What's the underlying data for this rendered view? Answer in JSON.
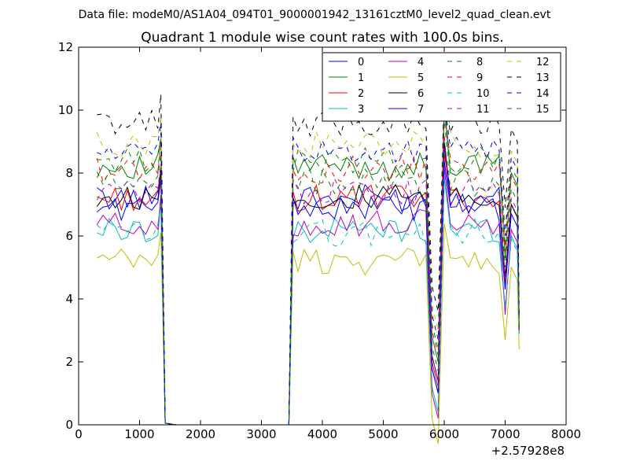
{
  "chart_data": {
    "type": "line",
    "suptitle": "Data file: modeM0/AS1A04_094T01_9000001942_13161cztM0_level2_quad_clean.evt",
    "title": "Quadrant 1 module wise count rates with 100.0s bins.",
    "xlabel": "",
    "ylabel": "",
    "xlim": [
      0,
      8000
    ],
    "ylim": [
      0,
      12
    ],
    "xticks": [
      0,
      1000,
      2000,
      3000,
      4000,
      5000,
      6000,
      7000,
      8000
    ],
    "yticks": [
      0,
      2,
      4,
      6,
      8,
      10,
      12
    ],
    "x_offset_label": "+2.57928e8",
    "grid": false,
    "legend": {
      "placement": "top-right",
      "columns": 4
    },
    "x": [
      300,
      400,
      500,
      600,
      700,
      800,
      900,
      1000,
      1100,
      1200,
      1300,
      1350,
      1420,
      1600,
      2000,
      2500,
      3000,
      3400,
      3450,
      3520,
      3600,
      3700,
      3800,
      3900,
      4000,
      4100,
      4200,
      4300,
      4400,
      4500,
      4600,
      4700,
      4800,
      4900,
      5000,
      5100,
      5200,
      5300,
      5400,
      5500,
      5600,
      5700,
      5800,
      5900,
      6000,
      6100,
      6200,
      6300,
      6400,
      6500,
      6600,
      6700,
      6800,
      6900,
      7000,
      7100,
      7200,
      7230
    ],
    "series": [
      {
        "name": "0",
        "color": "#0000ff",
        "dash": "solid",
        "base": 7.2,
        "low": 5.8,
        "spike": 8.9,
        "end": 3.0
      },
      {
        "name": "1",
        "color": "#008000",
        "dash": "solid",
        "base": 8.2,
        "low": 6.8,
        "spike": 10.1,
        "end": 3.2
      },
      {
        "name": "2",
        "color": "#ff0000",
        "dash": "solid",
        "base": 7.2,
        "low": 6.0,
        "spike": 8.6,
        "end": 3.0
      },
      {
        "name": "3",
        "color": "#00bfbf",
        "dash": "solid",
        "base": 6.2,
        "low": 5.2,
        "spike": 7.9,
        "end": 2.9
      },
      {
        "name": "4",
        "color": "#bf00bf",
        "dash": "solid",
        "base": 6.4,
        "low": 5.0,
        "spike": 8.2,
        "end": 3.0
      },
      {
        "name": "5",
        "color": "#bfbf00",
        "dash": "solid",
        "base": 5.2,
        "low": 4.2,
        "spike": 6.4,
        "end": 2.4
      },
      {
        "name": "6",
        "color": "#000000",
        "dash": "solid",
        "base": 7.2,
        "low": 6.2,
        "spike": 9.0,
        "end": 3.1
      },
      {
        "name": "7",
        "color": "#0000ff",
        "dash": "solid",
        "base": 6.9,
        "low": 5.8,
        "spike": 8.4,
        "end": 3.0
      },
      {
        "name": "8",
        "color": "#008000",
        "dash": "dashed",
        "base": 8.4,
        "low": 7.2,
        "spike": 10.4,
        "end": 3.2
      },
      {
        "name": "9",
        "color": "#ff0000",
        "dash": "dashed",
        "base": 8.1,
        "low": 7.0,
        "spike": 10.0,
        "end": 3.1
      },
      {
        "name": "10",
        "color": "#00bfbf",
        "dash": "dashed",
        "base": 6.1,
        "low": 5.2,
        "spike": 7.8,
        "end": 2.9
      },
      {
        "name": "11",
        "color": "#bf00bf",
        "dash": "dashed",
        "base": 7.4,
        "low": 6.2,
        "spike": 9.2,
        "end": 3.0
      },
      {
        "name": "12",
        "color": "#bfbf00",
        "dash": "dashed",
        "base": 8.9,
        "low": 7.8,
        "spike": 10.9,
        "end": 3.3
      },
      {
        "name": "13",
        "color": "#000000",
        "dash": "dashed",
        "base": 9.6,
        "low": 8.4,
        "spike": 10.5,
        "end": 3.5
      },
      {
        "name": "14",
        "color": "#0000ff",
        "dash": "dashed",
        "base": 8.7,
        "low": 7.5,
        "spike": 10.3,
        "end": 3.3
      },
      {
        "name": "15",
        "color": "#008000",
        "dash": "dashed",
        "base": 7.7,
        "low": 6.5,
        "spike": 9.8,
        "end": 3.1
      }
    ]
  }
}
